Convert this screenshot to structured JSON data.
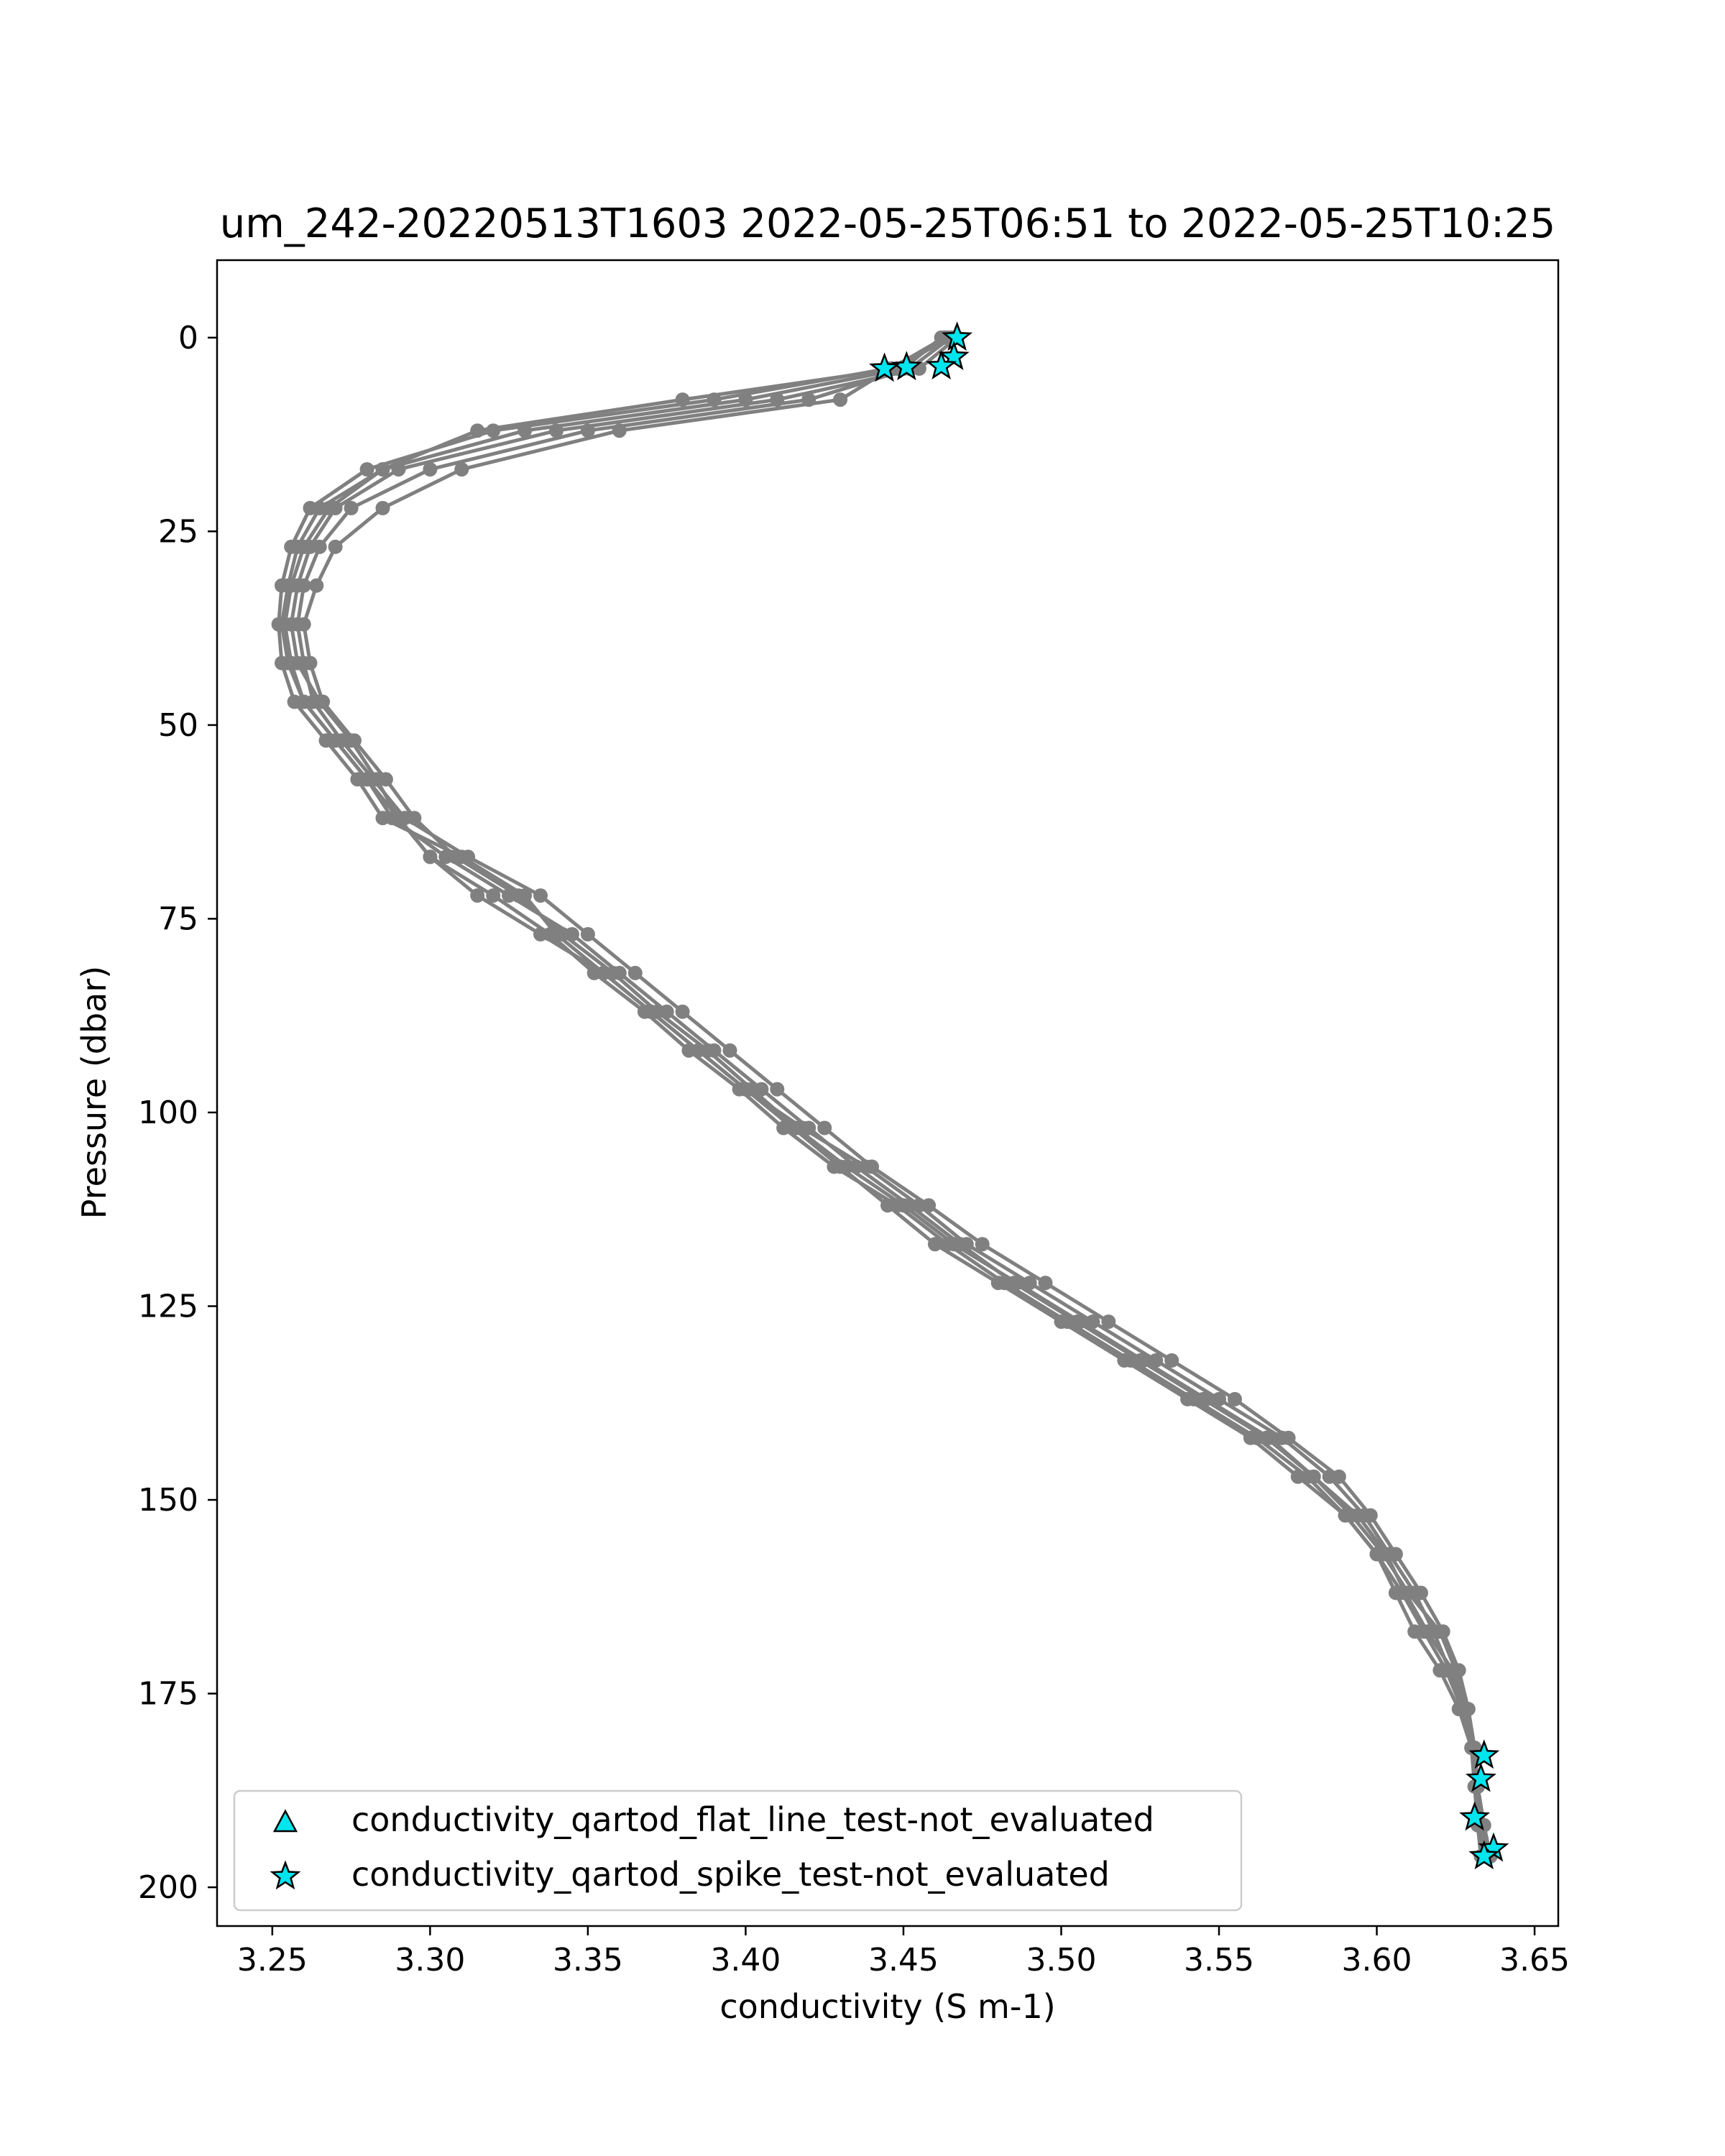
{
  "chart_data": {
    "type": "line",
    "title": "um_242-20220513T1603 2022-05-25T06:51 to 2022-05-25T10:25",
    "xlabel": "conductivity (S m-1)",
    "ylabel": "Pressure (dbar)",
    "xlim": [
      3.2325,
      3.6575
    ],
    "ylim": [
      205,
      -10
    ],
    "y_inverted": true,
    "grid": false,
    "xticks": [
      3.25,
      3.3,
      3.35,
      3.4,
      3.45,
      3.5,
      3.55,
      3.6,
      3.65
    ],
    "xtick_labels": [
      "3.25",
      "3.30",
      "3.35",
      "3.40",
      "3.45",
      "3.50",
      "3.55",
      "3.60",
      "3.65"
    ],
    "yticks": [
      0,
      25,
      50,
      75,
      100,
      125,
      150,
      175,
      200
    ],
    "ytick_labels": [
      "0",
      "25",
      "50",
      "75",
      "100",
      "125",
      "150",
      "175",
      "200"
    ],
    "line_color": "#808080",
    "marker_color": "#00e5ee",
    "legend_placement": "lower-left",
    "legend": [
      {
        "label": "conductivity_qartod_flat_line_test-not_evaluated",
        "marker": "triangle",
        "color": "#00e5ee"
      },
      {
        "label": "conductivity_qartod_spike_test-not_evaluated",
        "marker": "star",
        "color": "#00e5ee"
      }
    ],
    "series": [
      {
        "y": [
          0,
          4,
          8,
          12,
          17,
          22,
          27,
          32,
          37,
          42,
          47,
          52,
          57,
          62,
          67,
          72,
          77,
          82,
          87,
          92,
          97,
          102,
          107,
          112,
          117,
          122,
          127,
          132,
          137,
          142,
          147,
          152,
          157,
          162,
          167,
          172,
          177,
          182,
          187,
          192,
          196
        ],
        "x": [
          3.467,
          3.455,
          3.41,
          3.34,
          3.29,
          3.27,
          3.262,
          3.258,
          3.256,
          3.258,
          3.265,
          3.275,
          3.283,
          3.29,
          3.3,
          3.315,
          3.335,
          3.355,
          3.37,
          3.385,
          3.4,
          3.415,
          3.43,
          3.445,
          3.46,
          3.48,
          3.5,
          3.52,
          3.54,
          3.56,
          3.575,
          3.59,
          3.6,
          3.608,
          3.615,
          3.622,
          3.627,
          3.63,
          3.632,
          3.633,
          3.634
        ]
      },
      {
        "y": [
          0,
          4,
          8,
          12,
          17,
          22,
          27,
          32,
          37,
          42,
          47,
          52,
          57,
          62,
          67,
          72,
          77,
          82,
          87,
          92,
          97,
          102,
          107,
          112,
          117,
          122,
          127,
          132,
          137,
          142,
          147,
          152,
          157,
          162,
          167,
          172,
          177,
          182,
          187,
          192,
          196
        ],
        "x": [
          3.462,
          3.45,
          3.4,
          3.33,
          3.285,
          3.265,
          3.258,
          3.255,
          3.253,
          3.255,
          3.26,
          3.27,
          3.28,
          3.288,
          3.305,
          3.325,
          3.345,
          3.36,
          3.375,
          3.39,
          3.405,
          3.42,
          3.435,
          3.452,
          3.468,
          3.485,
          3.505,
          3.525,
          3.545,
          3.565,
          3.58,
          3.592,
          3.602,
          3.61,
          3.62,
          3.625,
          3.628,
          3.631,
          3.632,
          3.633,
          3.635
        ]
      },
      {
        "y": [
          0,
          4,
          8,
          12,
          17,
          22,
          27,
          32,
          37,
          42,
          47,
          52,
          57,
          62,
          67,
          72,
          77,
          82,
          87,
          92,
          97,
          102,
          107,
          112,
          117,
          122,
          127,
          132,
          137,
          142,
          147,
          152,
          157,
          162,
          167,
          172,
          177,
          182,
          187,
          192,
          196
        ],
        "x": [
          3.466,
          3.445,
          3.39,
          3.32,
          3.28,
          3.262,
          3.256,
          3.253,
          3.252,
          3.253,
          3.257,
          3.267,
          3.277,
          3.285,
          3.31,
          3.33,
          3.34,
          3.355,
          3.37,
          3.385,
          3.4,
          3.418,
          3.438,
          3.455,
          3.47,
          3.49,
          3.51,
          3.53,
          3.55,
          3.57,
          3.585,
          3.596,
          3.604,
          3.612,
          3.618,
          3.623,
          3.628,
          3.63,
          3.631,
          3.632,
          3.633
        ]
      },
      {
        "y": [
          0,
          4,
          8,
          12,
          17,
          22,
          27,
          32,
          37,
          42,
          47,
          52,
          57,
          62,
          67,
          72,
          77,
          82,
          87,
          92,
          97,
          102,
          107,
          112,
          117,
          122,
          127,
          132,
          137,
          142,
          147,
          152,
          157,
          162,
          167,
          172,
          177,
          182,
          187,
          192,
          196
        ],
        "x": [
          3.465,
          3.452,
          3.42,
          3.35,
          3.3,
          3.275,
          3.265,
          3.26,
          3.258,
          3.26,
          3.263,
          3.272,
          3.282,
          3.292,
          3.312,
          3.335,
          3.35,
          3.365,
          3.38,
          3.395,
          3.41,
          3.425,
          3.44,
          3.458,
          3.475,
          3.495,
          3.515,
          3.535,
          3.555,
          3.572,
          3.588,
          3.598,
          3.606,
          3.614,
          3.621,
          3.626,
          3.629,
          3.631,
          3.632,
          3.633,
          3.634
        ]
      },
      {
        "y": [
          0,
          4,
          8,
          12,
          17,
          22,
          27,
          32,
          37,
          42,
          47,
          52,
          57,
          62,
          67,
          72,
          77,
          82,
          87,
          92,
          97,
          102,
          107,
          112,
          117,
          122,
          127,
          132,
          137,
          142,
          147,
          152,
          157,
          162,
          167,
          172,
          177,
          182,
          187,
          192,
          196
        ],
        "x": [
          3.464,
          3.448,
          3.38,
          3.315,
          3.285,
          3.268,
          3.26,
          3.256,
          3.254,
          3.256,
          3.26,
          3.27,
          3.28,
          3.29,
          3.3,
          3.32,
          3.338,
          3.352,
          3.368,
          3.382,
          3.398,
          3.412,
          3.428,
          3.448,
          3.464,
          3.482,
          3.502,
          3.522,
          3.542,
          3.562,
          3.578,
          3.59,
          3.6,
          3.606,
          3.612,
          3.62,
          3.626,
          3.63,
          3.632,
          3.633,
          3.635
        ]
      },
      {
        "y": [
          0,
          4,
          8,
          12,
          17,
          22,
          27,
          32,
          37,
          42,
          47,
          52,
          57,
          62,
          67,
          72,
          77,
          82,
          87,
          92,
          97,
          102,
          107,
          112,
          117,
          122,
          127,
          132,
          137,
          142,
          147,
          152,
          157,
          162,
          167,
          172,
          177,
          182,
          187,
          192,
          196
        ],
        "x": [
          3.463,
          3.446,
          3.43,
          3.36,
          3.31,
          3.285,
          3.27,
          3.264,
          3.26,
          3.262,
          3.266,
          3.276,
          3.286,
          3.295,
          3.308,
          3.328,
          3.342,
          3.358,
          3.372,
          3.388,
          3.402,
          3.416,
          3.432,
          3.45,
          3.466,
          3.486,
          3.506,
          3.526,
          3.546,
          3.566,
          3.58,
          3.594,
          3.603,
          3.609,
          3.616,
          3.624,
          3.628,
          3.63,
          3.632,
          3.634,
          3.636
        ]
      }
    ],
    "spike_test_points": [
      {
        "x": 3.467,
        "y": 0
      },
      {
        "x": 3.466,
        "y": 2.5
      },
      {
        "x": 3.462,
        "y": 3.7
      },
      {
        "x": 3.451,
        "y": 3.8
      },
      {
        "x": 3.444,
        "y": 4
      },
      {
        "x": 3.634,
        "y": 183
      },
      {
        "x": 3.633,
        "y": 186
      },
      {
        "x": 3.631,
        "y": 191
      },
      {
        "x": 3.637,
        "y": 195
      },
      {
        "x": 3.634,
        "y": 196
      }
    ],
    "flat_line_test_points": []
  }
}
